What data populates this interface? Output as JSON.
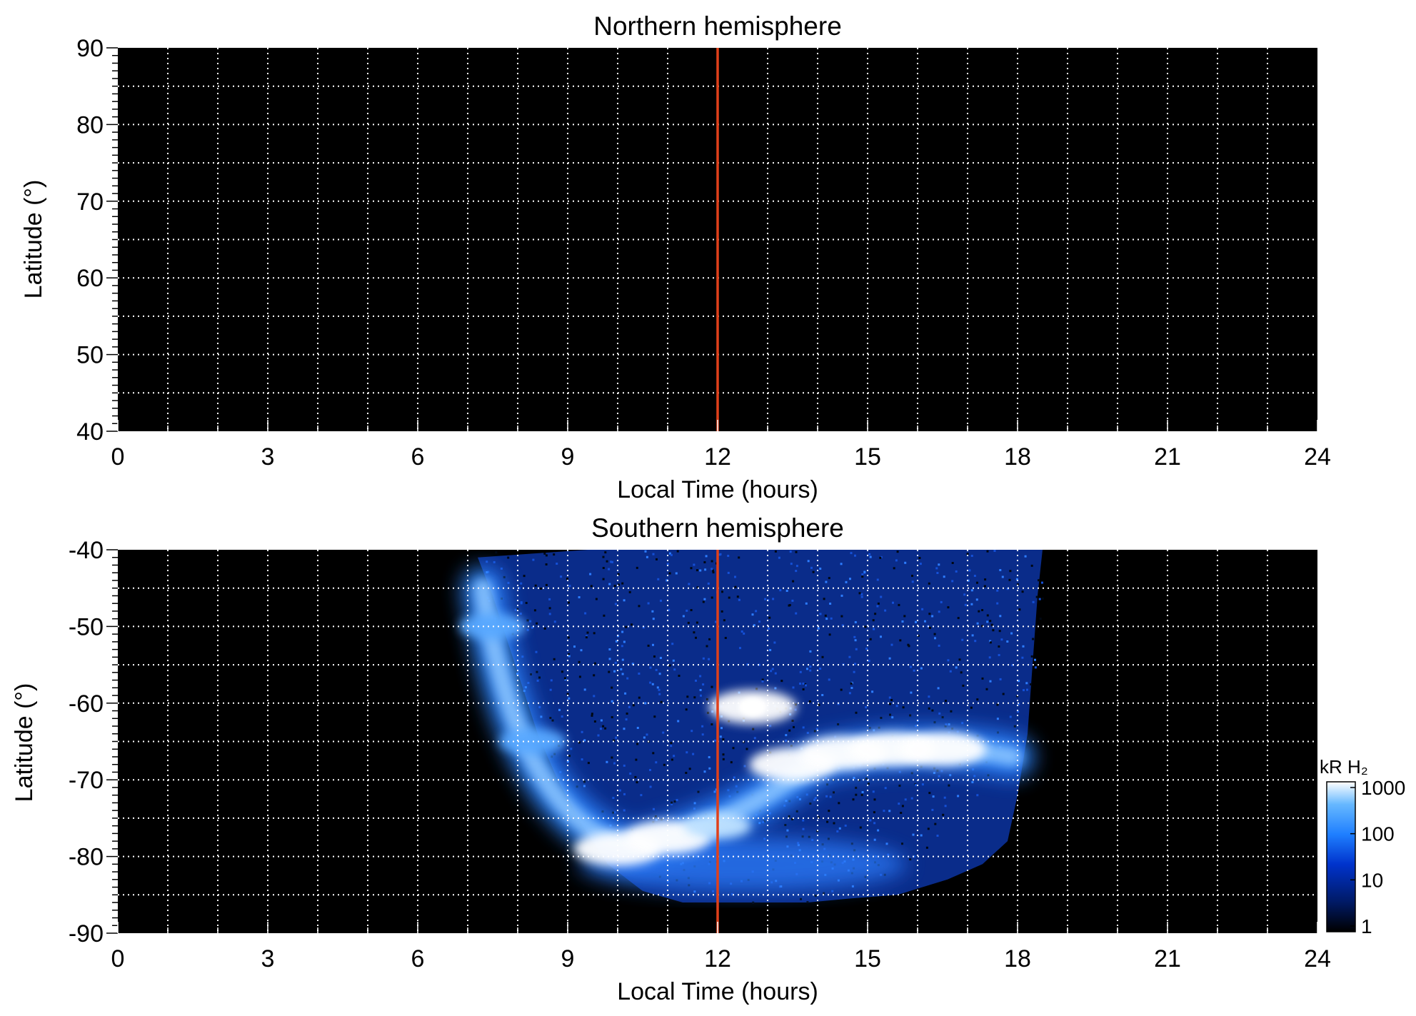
{
  "chart_data": [
    {
      "type": "heatmap",
      "title": "Northern hemisphere",
      "xlabel": "Local Time (hours)",
      "ylabel": "Latitude (°)",
      "xlim": [
        0,
        24
      ],
      "ylim": [
        40,
        90
      ],
      "x_ticks": [
        0,
        3,
        6,
        9,
        12,
        15,
        18,
        21,
        24
      ],
      "y_ticks": [
        40,
        50,
        60,
        70,
        80,
        90
      ],
      "grid": true,
      "grid_x_step": 1,
      "grid_y_step": 5,
      "background": "#000000",
      "marker_line": {
        "x": 12,
        "color": "#e0401a"
      },
      "emission": []
    },
    {
      "type": "heatmap",
      "title": "Southern hemisphere",
      "xlabel": "Local Time (hours)",
      "ylabel": "Latitude (°)",
      "xlim": [
        0,
        24
      ],
      "ylim": [
        -90,
        -40
      ],
      "x_ticks": [
        0,
        3,
        6,
        9,
        12,
        15,
        18,
        21,
        24
      ],
      "y_ticks": [
        -90,
        -80,
        -70,
        -60,
        -50,
        -40
      ],
      "grid": true,
      "grid_x_step": 1,
      "grid_y_step": 5,
      "background": "#000000",
      "marker_line": {
        "x": 12,
        "color": "#e0401a"
      },
      "coverage_region": {
        "left_edge": [
          [
            7.2,
            -41
          ],
          [
            7.5,
            -46
          ],
          [
            7.8,
            -52
          ],
          [
            8.1,
            -58
          ],
          [
            8.4,
            -64
          ],
          [
            8.8,
            -70
          ],
          [
            9.3,
            -76
          ],
          [
            9.8,
            -81
          ],
          [
            10.5,
            -84.5
          ],
          [
            11.3,
            -86
          ]
        ],
        "bottom_edge": [
          [
            11.3,
            -86
          ],
          [
            12.5,
            -86
          ],
          [
            13.8,
            -86
          ],
          [
            14.6,
            -85.5
          ]
        ],
        "right_edge": [
          [
            14.6,
            -85.5
          ],
          [
            15.6,
            -85
          ],
          [
            16.6,
            -83
          ],
          [
            17.3,
            -81
          ],
          [
            17.8,
            -78
          ],
          [
            18.0,
            -72
          ],
          [
            18.2,
            -64
          ],
          [
            18.3,
            -55
          ],
          [
            18.4,
            -46
          ],
          [
            18.5,
            -40
          ]
        ],
        "top_edge": [
          [
            18.5,
            -40
          ],
          [
            13,
            -40
          ],
          [
            9.4,
            -40
          ],
          [
            7.2,
            -41
          ]
        ]
      },
      "emission": [
        {
          "lt": 10.0,
          "lat": -79,
          "kR": 900
        },
        {
          "lt": 11.0,
          "lat": -77.5,
          "kR": 1000
        },
        {
          "lt": 12.0,
          "lat": -76,
          "kR": 700
        },
        {
          "lt": 13.5,
          "lat": -68,
          "kR": 900
        },
        {
          "lt": 14.5,
          "lat": -66.5,
          "kR": 1000
        },
        {
          "lt": 15.5,
          "lat": -66,
          "kR": 1000
        },
        {
          "lt": 16.5,
          "lat": -66,
          "kR": 1000
        },
        {
          "lt": 12.7,
          "lat": -60.5,
          "kR": 1000
        },
        {
          "lt": 7.5,
          "lat": -50,
          "kR": 100
        },
        {
          "lt": 8.3,
          "lat": -65,
          "kR": 150
        }
      ],
      "colorbar": {
        "label": "kR H₂",
        "scale": "log",
        "range": [
          1,
          1000
        ],
        "ticks": [
          "1000",
          "100",
          "10",
          "1"
        ],
        "colors": [
          "#000000",
          "#001a66",
          "#0033cc",
          "#1f7fff",
          "#66b8ff",
          "#ffffff"
        ]
      }
    }
  ]
}
